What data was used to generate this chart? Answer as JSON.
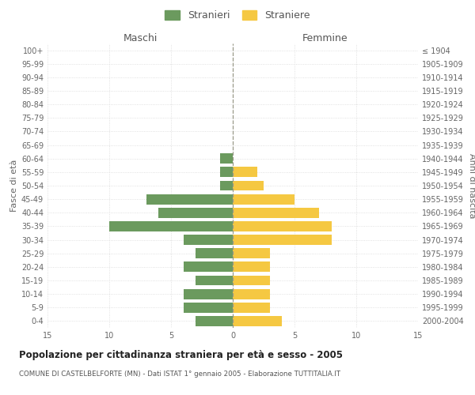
{
  "age_groups": [
    "100+",
    "95-99",
    "90-94",
    "85-89",
    "80-84",
    "75-79",
    "70-74",
    "65-69",
    "60-64",
    "55-59",
    "50-54",
    "45-49",
    "40-44",
    "35-39",
    "30-34",
    "25-29",
    "20-24",
    "15-19",
    "10-14",
    "5-9",
    "0-4"
  ],
  "birth_years": [
    "≤ 1904",
    "1905-1909",
    "1910-1914",
    "1915-1919",
    "1920-1924",
    "1925-1929",
    "1930-1934",
    "1935-1939",
    "1940-1944",
    "1945-1949",
    "1950-1954",
    "1955-1959",
    "1960-1964",
    "1965-1969",
    "1970-1974",
    "1975-1979",
    "1980-1984",
    "1985-1989",
    "1990-1994",
    "1995-1999",
    "2000-2004"
  ],
  "males": [
    0,
    0,
    0,
    0,
    0,
    0,
    0,
    0,
    1,
    1,
    1,
    7,
    6,
    10,
    4,
    3,
    4,
    3,
    4,
    4,
    3
  ],
  "females": [
    0,
    0,
    0,
    0,
    0,
    0,
    0,
    0,
    0,
    2,
    2.5,
    5,
    7,
    8,
    8,
    3,
    3,
    3,
    3,
    3,
    4
  ],
  "male_color": "#6b9a5e",
  "female_color": "#f5c842",
  "background_color": "#ffffff",
  "grid_color": "#d8d8d8",
  "title": "Popolazione per cittadinanza straniera per età e sesso - 2005",
  "subtitle": "COMUNE DI CASTELBELFORTE (MN) - Dati ISTAT 1° gennaio 2005 - Elaborazione TUTTITALIA.IT",
  "ylabel_left": "Fasce di età",
  "ylabel_right": "Anni di nascita",
  "xlabel_left": "Maschi",
  "xlabel_right": "Femmine",
  "legend_male": "Stranieri",
  "legend_female": "Straniere",
  "xlim": 15,
  "bar_height": 0.75
}
